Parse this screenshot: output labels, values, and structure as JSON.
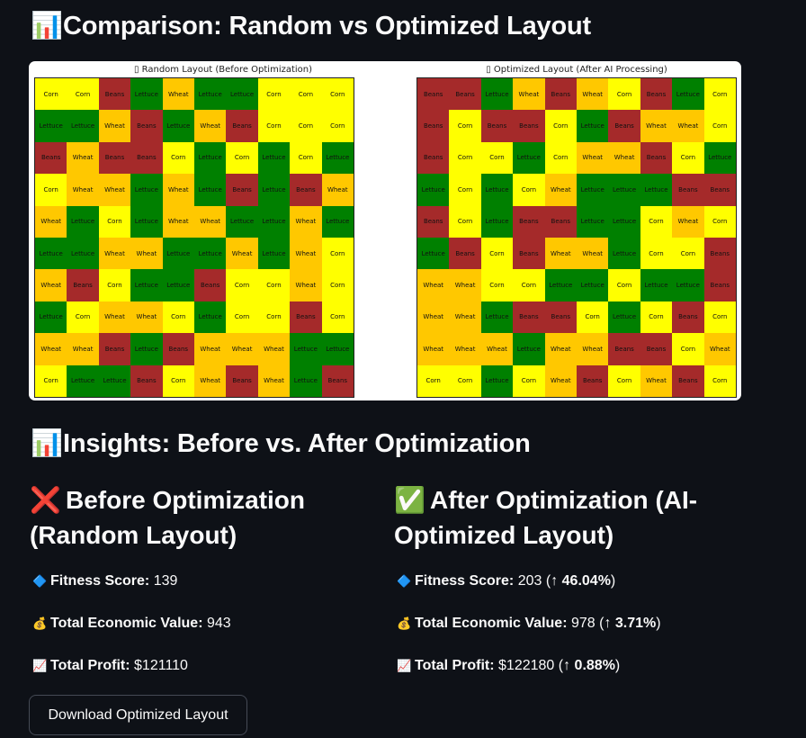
{
  "comparison": {
    "icon": "bar-chart-emoji",
    "title": "Comparison: Random vs Optimized Layout"
  },
  "random_grid": {
    "title": "▯ Random Layout (Before Optimization)",
    "rows": [
      [
        "Corn",
        "Corn",
        "Beans",
        "Lettuce",
        "Wheat",
        "Lettuce",
        "Lettuce",
        "Corn",
        "Corn",
        "Corn"
      ],
      [
        "Lettuce",
        "Lettuce",
        "Wheat",
        "Beans",
        "Lettuce",
        "Wheat",
        "Beans",
        "Corn",
        "Corn",
        "Corn"
      ],
      [
        "Beans",
        "Wheat",
        "Beans",
        "Beans",
        "Corn",
        "Lettuce",
        "Corn",
        "Lettuce",
        "Corn",
        "Lettuce"
      ],
      [
        "Corn",
        "Wheat",
        "Wheat",
        "Lettuce",
        "Wheat",
        "Lettuce",
        "Beans",
        "Lettuce",
        "Beans",
        "Wheat"
      ],
      [
        "Wheat",
        "Lettuce",
        "Corn",
        "Lettuce",
        "Wheat",
        "Wheat",
        "Lettuce",
        "Lettuce",
        "Wheat",
        "Lettuce"
      ],
      [
        "Lettuce",
        "Lettuce",
        "Wheat",
        "Wheat",
        "Lettuce",
        "Lettuce",
        "Wheat",
        "Lettuce",
        "Wheat",
        "Corn"
      ],
      [
        "Wheat",
        "Beans",
        "Corn",
        "Lettuce",
        "Lettuce",
        "Beans",
        "Corn",
        "Corn",
        "Wheat",
        "Corn"
      ],
      [
        "Lettuce",
        "Corn",
        "Wheat",
        "Wheat",
        "Corn",
        "Lettuce",
        "Corn",
        "Corn",
        "Beans",
        "Corn"
      ],
      [
        "Wheat",
        "Wheat",
        "Beans",
        "Lettuce",
        "Beans",
        "Wheat",
        "Wheat",
        "Wheat",
        "Lettuce",
        "Lettuce"
      ],
      [
        "Corn",
        "Lettuce",
        "Lettuce",
        "Beans",
        "Corn",
        "Wheat",
        "Beans",
        "Wheat",
        "Lettuce",
        "Beans"
      ]
    ]
  },
  "optimized_grid": {
    "title": "▯ Optimized Layout (After AI Processing)",
    "rows": [
      [
        "Beans",
        "Beans",
        "Lettuce",
        "Wheat",
        "Beans",
        "Wheat",
        "Corn",
        "Beans",
        "Lettuce",
        "Corn"
      ],
      [
        "Beans",
        "Corn",
        "Beans",
        "Beans",
        "Corn",
        "Lettuce",
        "Beans",
        "Wheat",
        "Wheat",
        "Corn"
      ],
      [
        "Beans",
        "Corn",
        "Corn",
        "Lettuce",
        "Corn",
        "Wheat",
        "Wheat",
        "Beans",
        "Corn",
        "Lettuce"
      ],
      [
        "Lettuce",
        "Corn",
        "Lettuce",
        "Corn",
        "Wheat",
        "Lettuce",
        "Lettuce",
        "Lettuce",
        "Beans",
        "Beans"
      ],
      [
        "Beans",
        "Corn",
        "Lettuce",
        "Beans",
        "Beans",
        "Lettuce",
        "Lettuce",
        "Corn",
        "Wheat",
        "Corn"
      ],
      [
        "Lettuce",
        "Beans",
        "Corn",
        "Beans",
        "Wheat",
        "Wheat",
        "Lettuce",
        "Corn",
        "Corn",
        "Beans"
      ],
      [
        "Wheat",
        "Wheat",
        "Corn",
        "Corn",
        "Lettuce",
        "Lettuce",
        "Corn",
        "Lettuce",
        "Lettuce",
        "Beans"
      ],
      [
        "Wheat",
        "Wheat",
        "Lettuce",
        "Beans",
        "Beans",
        "Corn",
        "Lettuce",
        "Corn",
        "Beans",
        "Corn"
      ],
      [
        "Wheat",
        "Wheat",
        "Wheat",
        "Lettuce",
        "Wheat",
        "Wheat",
        "Beans",
        "Beans",
        "Corn",
        "Wheat"
      ],
      [
        "Corn",
        "Corn",
        "Lettuce",
        "Corn",
        "Wheat",
        "Beans",
        "Corn",
        "Wheat",
        "Beans",
        "Corn"
      ]
    ]
  },
  "crop_colors": {
    "Corn": "#ffff00",
    "Lettuce": "#008000",
    "Beans": "#a52a2a",
    "Wheat": "#ffc800"
  },
  "insights": {
    "icon": "bar-chart-emoji",
    "title": "Insights: Before vs. After Optimization"
  },
  "before": {
    "icon": "cross-mark-emoji",
    "icon_glyph": "❌",
    "title": "Before Optimization (Random Layout)",
    "fitness_label": "Fitness Score:",
    "fitness_value": "139",
    "economic_label": "Total Economic Value:",
    "economic_value": "943",
    "profit_label": "Total Profit:",
    "profit_value": "$121110"
  },
  "after": {
    "icon": "check-mark-emoji",
    "icon_glyph": "✅",
    "title": "After Optimization (AI-Optimized Layout)",
    "fitness_label": "Fitness Score:",
    "fitness_value": "203",
    "fitness_change": "↑ 46.04%",
    "economic_label": "Total Economic Value:",
    "economic_value": "978",
    "economic_change": "↑ 3.71%",
    "profit_label": "Total Profit:",
    "profit_value": "$122180",
    "profit_change": "↑ 0.88%"
  },
  "stat_icons": {
    "fitness": "diamond-icon",
    "economic": "money-bag-icon",
    "profit": "chart-increasing-icon"
  },
  "download_button": {
    "label": "Download Optimized Layout"
  }
}
